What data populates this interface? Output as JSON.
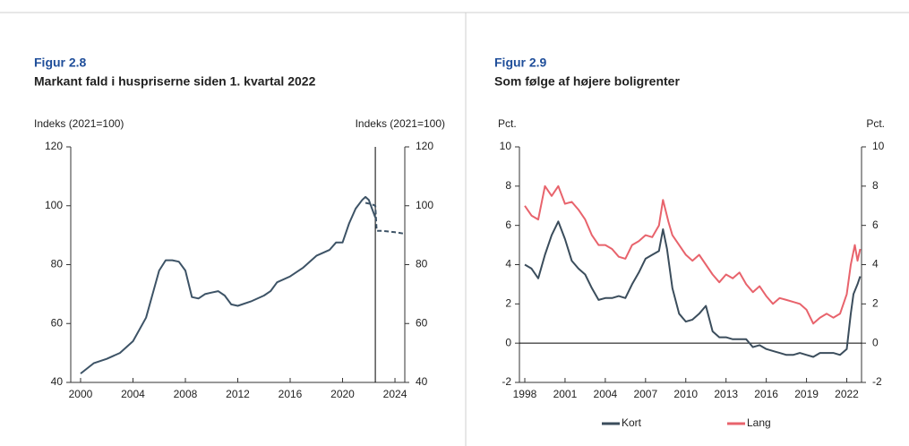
{
  "chart_data": [
    {
      "type": "line",
      "figure_label": "Figur 2.8",
      "title": "Markant fald i huspriserne siden 1. kvartal 2022",
      "ylabel": "Indeks (2021=100)",
      "y2label": "Indeks (2021=100)",
      "xlim": [
        1999.25,
        2024.75
      ],
      "xticks": [
        2000,
        2004,
        2008,
        2012,
        2016,
        2020,
        2024
      ],
      "ylim": [
        40,
        120
      ],
      "yticks": [
        40,
        60,
        80,
        100,
        120
      ],
      "y2lim": [
        40,
        120
      ],
      "y2ticks": [
        40,
        60,
        80,
        100,
        120
      ],
      "vline": 2022.5,
      "series": [
        {
          "color": "#3d5366",
          "style": "solid",
          "x": [
            2000,
            2001,
            2002,
            2003,
            2004,
            2005,
            2005.5,
            2006,
            2006.5,
            2007,
            2007.5,
            2008,
            2008.5,
            2009,
            2009.5,
            2010,
            2010.5,
            2011,
            2011.5,
            2012,
            2013,
            2014,
            2014.5,
            2015,
            2016,
            2017,
            2018,
            2019,
            2019.5,
            2020,
            2020.5,
            2021,
            2021.5,
            2021.75,
            2022,
            2022.25,
            2022.5
          ],
          "values": [
            43,
            46.5,
            48,
            50,
            54,
            62,
            70,
            78,
            81.5,
            81.5,
            81,
            78,
            69,
            68.5,
            70,
            70.5,
            71,
            69.5,
            66.5,
            66,
            67.5,
            69.5,
            71,
            74,
            76,
            79,
            83,
            85,
            87.5,
            87.5,
            94,
            99,
            102,
            103,
            102,
            99,
            96
          ]
        },
        {
          "color": "#3d5366",
          "style": "dashed",
          "x": [
            2021.75,
            2022.25,
            2022.5,
            2022.6,
            2023,
            2024,
            2024.75
          ],
          "values": [
            101,
            100.5,
            100,
            91.5,
            91.5,
            91,
            90.5
          ]
        }
      ]
    },
    {
      "type": "line",
      "figure_label": "Figur 2.9",
      "title": "Som følge af højere boligrenter",
      "ylabel": "Pct.",
      "y2label": "Pct.",
      "xlim": [
        1997.6,
        2023.1
      ],
      "xticks": [
        1998,
        2001,
        2004,
        2007,
        2010,
        2013,
        2016,
        2019,
        2022
      ],
      "ylim": [
        -2,
        10
      ],
      "yticks": [
        -2,
        0,
        2,
        4,
        6,
        8,
        10
      ],
      "y2lim": [
        -2,
        10
      ],
      "y2ticks": [
        -2,
        0,
        2,
        4,
        6,
        8,
        10
      ],
      "zero_line": true,
      "legend": "bottom",
      "series": [
        {
          "name": "Kort",
          "color": "#3b4d5c",
          "style": "solid",
          "x": [
            1998,
            1998.5,
            1999,
            1999.5,
            2000,
            2000.5,
            2001,
            2001.5,
            2002,
            2002.5,
            2003,
            2003.5,
            2004,
            2004.5,
            2005,
            2005.5,
            2006,
            2006.5,
            2007,
            2007.5,
            2008,
            2008.3,
            2008.6,
            2009,
            2009.5,
            2010,
            2010.5,
            2011,
            2011.5,
            2012,
            2012.5,
            2013,
            2013.5,
            2014,
            2014.5,
            2015,
            2015.5,
            2016,
            2016.5,
            2017,
            2017.5,
            2018,
            2018.5,
            2019,
            2019.5,
            2020,
            2020.5,
            2021,
            2021.5,
            2022,
            2022.3,
            2022.5,
            2022.8,
            2023
          ],
          "values": [
            4.0,
            3.8,
            3.3,
            4.5,
            5.5,
            6.2,
            5.3,
            4.2,
            3.8,
            3.5,
            2.8,
            2.2,
            2.3,
            2.3,
            2.4,
            2.3,
            3.0,
            3.6,
            4.3,
            4.5,
            4.7,
            5.8,
            4.8,
            2.8,
            1.5,
            1.1,
            1.2,
            1.5,
            1.9,
            0.6,
            0.3,
            0.3,
            0.2,
            0.2,
            0.2,
            -0.2,
            -0.1,
            -0.3,
            -0.4,
            -0.5,
            -0.6,
            -0.6,
            -0.5,
            -0.6,
            -0.7,
            -0.5,
            -0.5,
            -0.5,
            -0.6,
            -0.3,
            1.5,
            2.5,
            3.0,
            3.4
          ]
        },
        {
          "name": "Lang",
          "color": "#e8636c",
          "style": "solid",
          "x": [
            1998,
            1998.5,
            1999,
            1999.5,
            2000,
            2000.5,
            2001,
            2001.5,
            2002,
            2002.5,
            2003,
            2003.5,
            2004,
            2004.5,
            2005,
            2005.5,
            2006,
            2006.5,
            2007,
            2007.5,
            2008,
            2008.3,
            2008.7,
            2009,
            2009.5,
            2010,
            2010.5,
            2011,
            2011.5,
            2012,
            2012.5,
            2013,
            2013.5,
            2014,
            2014.5,
            2015,
            2015.5,
            2016,
            2016.5,
            2017,
            2017.5,
            2018,
            2018.5,
            2019,
            2019.5,
            2020,
            2020.5,
            2021,
            2021.5,
            2022,
            2022.3,
            2022.6,
            2022.8,
            2023
          ],
          "values": [
            7.0,
            6.5,
            6.3,
            8.0,
            7.5,
            8.0,
            7.1,
            7.2,
            6.8,
            6.3,
            5.5,
            5.0,
            5.0,
            4.8,
            4.4,
            4.3,
            5.0,
            5.2,
            5.5,
            5.4,
            6.0,
            7.3,
            6.2,
            5.5,
            5.0,
            4.5,
            4.2,
            4.5,
            4.0,
            3.5,
            3.1,
            3.5,
            3.3,
            3.6,
            3.0,
            2.6,
            2.9,
            2.4,
            2.0,
            2.3,
            2.2,
            2.1,
            2.0,
            1.7,
            1.0,
            1.3,
            1.5,
            1.3,
            1.5,
            2.5,
            4.0,
            5.0,
            4.2,
            4.8
          ]
        }
      ]
    }
  ]
}
